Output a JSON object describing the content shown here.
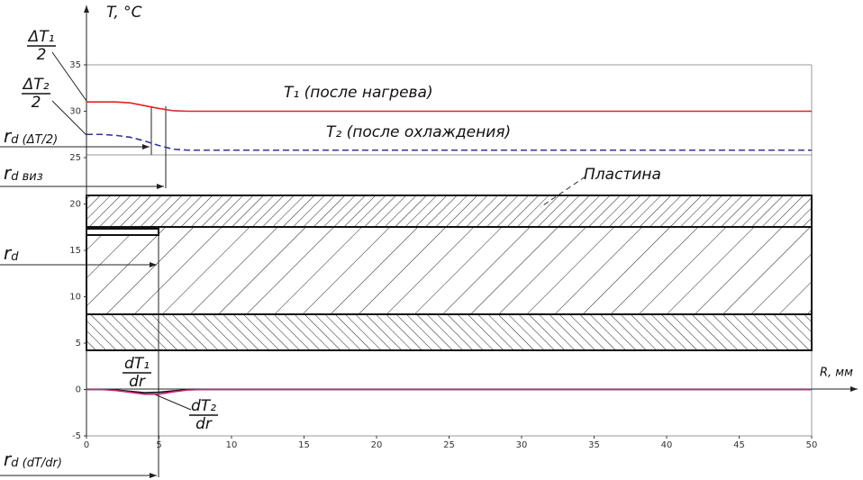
{
  "chart_data": {
    "type": "line",
    "y_label": "T, °C",
    "x_label": "R, мм",
    "xlim": [
      0,
      50
    ],
    "xticks": [
      0,
      5,
      10,
      15,
      20,
      25,
      30,
      35,
      40,
      45,
      50
    ],
    "ylim": [
      -5,
      35
    ],
    "yticks": [
      -5,
      0,
      5,
      10,
      15,
      20,
      25,
      30,
      35
    ],
    "x": [
      0,
      1,
      2,
      3,
      4,
      5,
      6,
      7,
      8,
      10,
      20,
      30,
      40,
      50
    ],
    "series": [
      {
        "name": "T₁ (после нагрева)",
        "color": "#e02424",
        "dashed": false,
        "values": [
          31,
          31,
          31,
          30.9,
          30.6,
          30.3,
          30.05,
          30,
          30,
          30,
          30,
          30,
          30,
          30
        ]
      },
      {
        "name": "T₂ (после охлаждения)",
        "color": "#34349a",
        "dashed": true,
        "values": [
          27.5,
          27.5,
          27.4,
          27.2,
          26.8,
          26.3,
          25.9,
          25.8,
          25.8,
          25.8,
          25.8,
          25.8,
          25.8,
          25.8
        ]
      },
      {
        "name": null,
        "color": "#111111",
        "dashed": false,
        "values": [
          0,
          0,
          -0.05,
          -0.2,
          -0.35,
          -0.3,
          -0.15,
          -0.02,
          0,
          0,
          0,
          0,
          0,
          0
        ]
      },
      {
        "name": null,
        "color": "#cc2277",
        "dashed": false,
        "values": [
          0,
          0,
          -0.1,
          -0.3,
          -0.5,
          -0.5,
          -0.25,
          -0.05,
          0,
          0,
          0,
          0,
          0,
          0
        ]
      }
    ],
    "annotations": {
      "dT1_half": {
        "numerator": "ΔT₁",
        "denominator": "2"
      },
      "dT2_half": {
        "numerator": "ΔT₂",
        "denominator": "2"
      },
      "rd_half": {
        "main": "r",
        "sub": "d (ΔT/2)"
      },
      "rd_vis": {
        "main": "r",
        "sub": "d виз"
      },
      "rd": {
        "main": "r",
        "sub": "d"
      },
      "rd_deriv": {
        "main": "r",
        "sub": "d (dT/dr)"
      },
      "deriv1": {
        "numerator": "dT₁",
        "denominator": "dr"
      },
      "deriv2": {
        "numerator": "dT₂",
        "denominator": "dr"
      },
      "plate": "Пластина"
    }
  }
}
